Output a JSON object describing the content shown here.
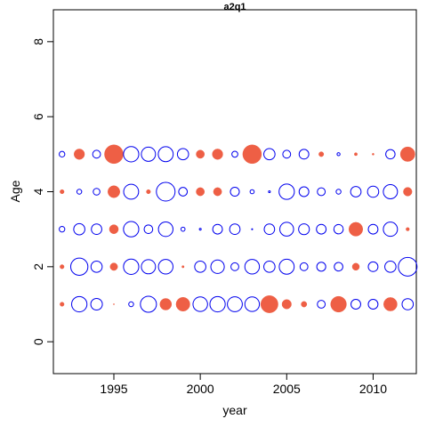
{
  "chart_data": {
    "type": "scatter",
    "title": "a2q1",
    "xlabel": "year",
    "ylabel": "Age",
    "xlim": [
      1991.5,
      2012.5
    ],
    "ylim": [
      -0.85,
      8.85
    ],
    "x_ticks": [
      1995,
      2000,
      2005,
      2010
    ],
    "y_ticks": [
      0,
      2,
      4,
      6,
      8
    ],
    "grid": false,
    "legend": "none",
    "colors": {
      "positive": "#ee5f45",
      "negative": "#0000ee",
      "axis": "#000000"
    },
    "series": [
      {
        "age": 1,
        "points": [
          {
            "year": 1992,
            "v": 0.22
          },
          {
            "year": 1993,
            "v": -0.82
          },
          {
            "year": 1994,
            "v": -0.62
          },
          {
            "year": 1995,
            "v": 0.05
          },
          {
            "year": 1996,
            "v": -0.26
          },
          {
            "year": 1997,
            "v": -0.86
          },
          {
            "year": 1998,
            "v": 0.62
          },
          {
            "year": 1999,
            "v": 0.74
          },
          {
            "year": 2000,
            "v": -0.78
          },
          {
            "year": 2001,
            "v": -0.82
          },
          {
            "year": 2002,
            "v": -0.8
          },
          {
            "year": 2003,
            "v": -0.78
          },
          {
            "year": 2004,
            "v": 0.92
          },
          {
            "year": 2005,
            "v": 0.5
          },
          {
            "year": 2006,
            "v": 0.3
          },
          {
            "year": 2007,
            "v": -0.42
          },
          {
            "year": 2008,
            "v": 0.84
          },
          {
            "year": 2009,
            "v": -0.52
          },
          {
            "year": 2010,
            "v": -0.52
          },
          {
            "year": 2011,
            "v": 0.72
          },
          {
            "year": 2012,
            "v": -0.6
          }
        ]
      },
      {
        "age": 2,
        "points": [
          {
            "year": 1992,
            "v": 0.22
          },
          {
            "year": 1993,
            "v": -0.92
          },
          {
            "year": 1994,
            "v": -0.6
          },
          {
            "year": 1995,
            "v": 0.4
          },
          {
            "year": 1996,
            "v": -0.82
          },
          {
            "year": 1997,
            "v": -0.76
          },
          {
            "year": 1998,
            "v": -0.78
          },
          {
            "year": 1999,
            "v": 0.12
          },
          {
            "year": 2000,
            "v": -0.6
          },
          {
            "year": 2001,
            "v": -0.72
          },
          {
            "year": 2002,
            "v": -0.42
          },
          {
            "year": 2003,
            "v": -0.78
          },
          {
            "year": 2004,
            "v": -0.6
          },
          {
            "year": 2005,
            "v": -0.8
          },
          {
            "year": 2006,
            "v": -0.42
          },
          {
            "year": 2007,
            "v": -0.48
          },
          {
            "year": 2008,
            "v": -0.46
          },
          {
            "year": 2009,
            "v": 0.38
          },
          {
            "year": 2010,
            "v": -0.52
          },
          {
            "year": 2011,
            "v": -0.6
          },
          {
            "year": 2012,
            "v": -1.0
          }
        ]
      },
      {
        "age": 3,
        "points": [
          {
            "year": 1992,
            "v": -0.3
          },
          {
            "year": 1993,
            "v": -0.6
          },
          {
            "year": 1994,
            "v": -0.56
          },
          {
            "year": 1995,
            "v": 0.48
          },
          {
            "year": 1996,
            "v": -0.82
          },
          {
            "year": 1997,
            "v": -0.46
          },
          {
            "year": 1998,
            "v": -0.78
          },
          {
            "year": 1999,
            "v": -0.22
          },
          {
            "year": 2000,
            "v": -0.1
          },
          {
            "year": 2001,
            "v": -0.52
          },
          {
            "year": 2002,
            "v": -0.56
          },
          {
            "year": 2003,
            "v": -0.03
          },
          {
            "year": 2004,
            "v": -0.56
          },
          {
            "year": 2005,
            "v": -0.74
          },
          {
            "year": 2006,
            "v": -0.58
          },
          {
            "year": 2007,
            "v": -0.52
          },
          {
            "year": 2008,
            "v": -0.5
          },
          {
            "year": 2009,
            "v": 0.74
          },
          {
            "year": 2010,
            "v": -0.52
          },
          {
            "year": 2011,
            "v": -0.76
          },
          {
            "year": 2012,
            "v": 0.18
          }
        ]
      },
      {
        "age": 4,
        "points": [
          {
            "year": 1992,
            "v": 0.22
          },
          {
            "year": 1993,
            "v": -0.26
          },
          {
            "year": 1994,
            "v": -0.36
          },
          {
            "year": 1995,
            "v": 0.64
          },
          {
            "year": 1996,
            "v": -0.8
          },
          {
            "year": 1997,
            "v": 0.22
          },
          {
            "year": 1998,
            "v": -1.0
          },
          {
            "year": 1999,
            "v": -0.46
          },
          {
            "year": 2000,
            "v": 0.44
          },
          {
            "year": 2001,
            "v": 0.44
          },
          {
            "year": 2002,
            "v": -0.48
          },
          {
            "year": 2003,
            "v": -0.22
          },
          {
            "year": 2004,
            "v": -0.1
          },
          {
            "year": 2005,
            "v": -0.82
          },
          {
            "year": 2006,
            "v": -0.52
          },
          {
            "year": 2007,
            "v": -0.42
          },
          {
            "year": 2008,
            "v": -0.26
          },
          {
            "year": 2009,
            "v": -0.56
          },
          {
            "year": 2010,
            "v": -0.6
          },
          {
            "year": 2011,
            "v": -0.76
          },
          {
            "year": 2012,
            "v": 0.46
          }
        ]
      },
      {
        "age": 5,
        "points": [
          {
            "year": 1992,
            "v": -0.3
          },
          {
            "year": 1993,
            "v": 0.56
          },
          {
            "year": 1994,
            "v": -0.42
          },
          {
            "year": 1995,
            "v": 1.0
          },
          {
            "year": 1996,
            "v": -0.82
          },
          {
            "year": 1997,
            "v": -0.76
          },
          {
            "year": 1998,
            "v": -0.8
          },
          {
            "year": 1999,
            "v": -0.6
          },
          {
            "year": 2000,
            "v": 0.44
          },
          {
            "year": 2001,
            "v": 0.56
          },
          {
            "year": 2002,
            "v": -0.32
          },
          {
            "year": 2003,
            "v": 1.0
          },
          {
            "year": 2004,
            "v": -0.6
          },
          {
            "year": 2005,
            "v": -0.42
          },
          {
            "year": 2006,
            "v": -0.52
          },
          {
            "year": 2007,
            "v": 0.26
          },
          {
            "year": 2008,
            "v": -0.16
          },
          {
            "year": 2009,
            "v": 0.16
          },
          {
            "year": 2010,
            "v": 0.1
          },
          {
            "year": 2011,
            "v": -0.5
          },
          {
            "year": 2012,
            "v": 0.78
          }
        ]
      }
    ]
  }
}
